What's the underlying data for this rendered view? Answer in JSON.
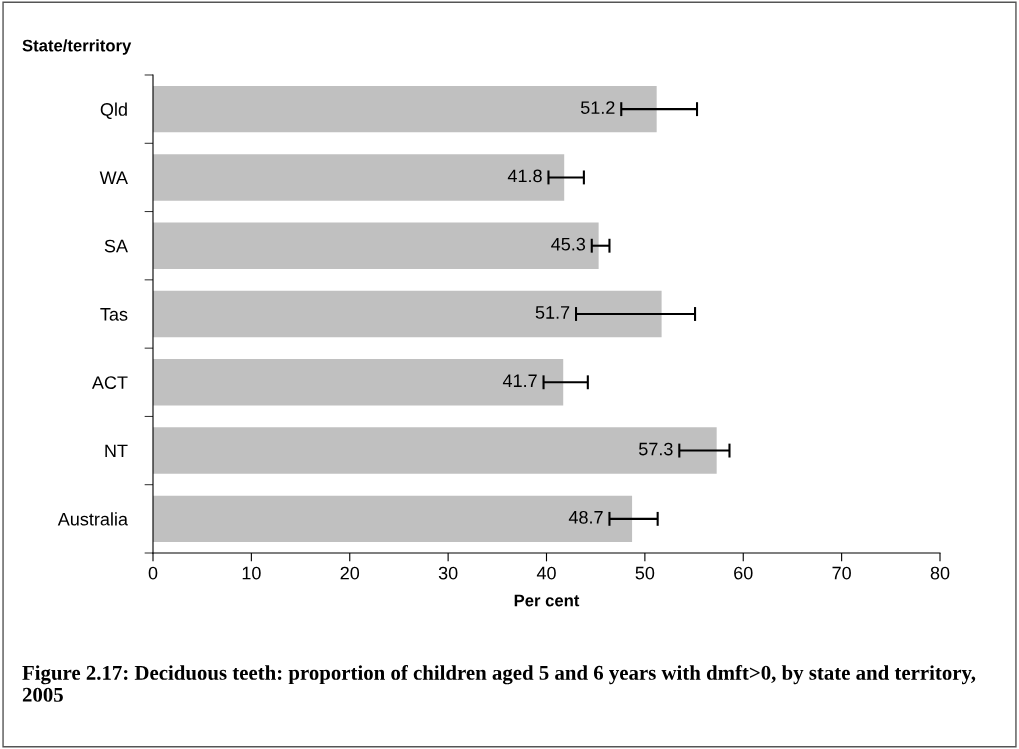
{
  "chart_data": {
    "type": "bar",
    "orientation": "horizontal",
    "title": "Figure 2.17: Deciduous teeth: proportion of children aged 5 and 6 years with dmft>0, by state and territory, 2005",
    "ylabel": "State/territory",
    "xlabel": "Per cent",
    "categories": [
      "Qld",
      "WA",
      "SA",
      "Tas",
      "ACT",
      "NT",
      "Australia"
    ],
    "values": [
      51.2,
      41.8,
      45.3,
      51.7,
      41.7,
      57.3,
      48.7
    ],
    "errors": [
      [
        47.6,
        55.3
      ],
      [
        40.2,
        43.8
      ],
      [
        44.6,
        46.4
      ],
      [
        43.0,
        55.1
      ],
      [
        39.7,
        44.2
      ],
      [
        53.5,
        58.6
      ],
      [
        46.4,
        51.3
      ]
    ],
    "color": "#c0c0c0",
    "xlim": [
      0,
      80
    ],
    "xticks": [
      0,
      10,
      20,
      30,
      40,
      50,
      60,
      70,
      80
    ],
    "data_labels": true,
    "grid": false,
    "legend": false
  }
}
